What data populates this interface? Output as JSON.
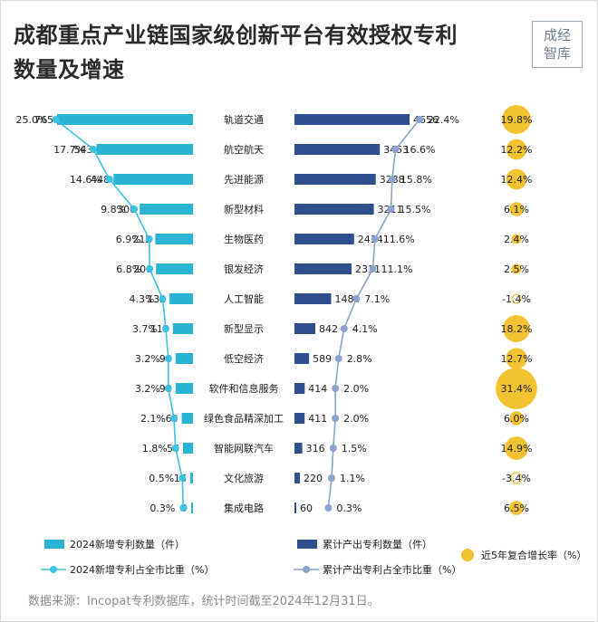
{
  "header": {
    "title_line1": "成都重点产业链国家级创新平台有效授权专利",
    "title_line2": "数量及增速",
    "logo_line1": "成经",
    "logo_line2": "智库"
  },
  "footer": {
    "source": "数据来源：Incopat专利数据库，统计时间截至2024年12月31日。"
  },
  "chart_data": {
    "type": "bar",
    "categories": [
      "轨道交通",
      "航空航天",
      "先进能源",
      "新型材料",
      "生物医药",
      "银发经济",
      "人工智能",
      "新型显示",
      "低空经济",
      "软件和信息服务",
      "绿色食品精深加工",
      "智能网联汽车",
      "文化旅游",
      "集成电路"
    ],
    "series": [
      {
        "name": "2024新增专利数量（件）",
        "kind": "bar",
        "color": "#2bb3d3",
        "values": [
          765,
          543,
          448,
          300,
          212,
          208,
          132,
          113,
          98,
          98,
          63,
          56,
          16,
          9
        ]
      },
      {
        "name": "2024新增专利占全市比重（%）",
        "kind": "line",
        "color": "#3ec1e3",
        "values": [
          25.0,
          17.7,
          14.6,
          9.8,
          6.9,
          6.8,
          4.3,
          3.7,
          3.2,
          3.2,
          2.1,
          1.8,
          0.5,
          0.3
        ],
        "labels": [
          "25.0%",
          "17.7%",
          "14.6%",
          "9.8%",
          "6.9%",
          "6.8%",
          "4.3%",
          "3.7%",
          "3.2%",
          "3.2%",
          "2.1%",
          "1.8%",
          "0.5%",
          "0.3%"
        ]
      },
      {
        "name": "累计产出专利数量（件）",
        "kind": "bar",
        "color": "#2f4f8f",
        "values": [
          4656,
          3453,
          3288,
          3211,
          2414,
          2311,
          1484,
          842,
          589,
          414,
          411,
          316,
          220,
          60
        ]
      },
      {
        "name": "累计产出专利占全市比重（%）",
        "kind": "line",
        "color": "#8aa3cf",
        "values": [
          22.4,
          16.6,
          15.8,
          15.5,
          11.6,
          11.1,
          7.1,
          4.1,
          2.8,
          2.0,
          2.0,
          1.5,
          1.1,
          0.3
        ],
        "labels": [
          "22.4%",
          "16.6%",
          "15.8%",
          "15.5%",
          "11.6%",
          "11.1%",
          "7.1%",
          "4.1%",
          "2.8%",
          "2.0%",
          "2.0%",
          "1.5%",
          "1.1%",
          "0.3%"
        ]
      },
      {
        "name": "近5年复合增长率（%）",
        "kind": "bubble",
        "color": "#f2c230",
        "values": [
          19.8,
          12.2,
          12.4,
          6.1,
          2.4,
          2.5,
          -1.4,
          18.2,
          12.7,
          31.4,
          6.0,
          14.9,
          -3.4,
          6.5
        ],
        "labels": [
          "19.8%",
          "12.2%",
          "12.4%",
          "6.1%",
          "2.4%",
          "2.5%",
          "-1.4%",
          "18.2%",
          "12.7%",
          "31.4%",
          "6.0%",
          "14.9%",
          "-3.4%",
          "6.5%"
        ]
      }
    ],
    "legend_position": "bottom",
    "grid": false
  }
}
